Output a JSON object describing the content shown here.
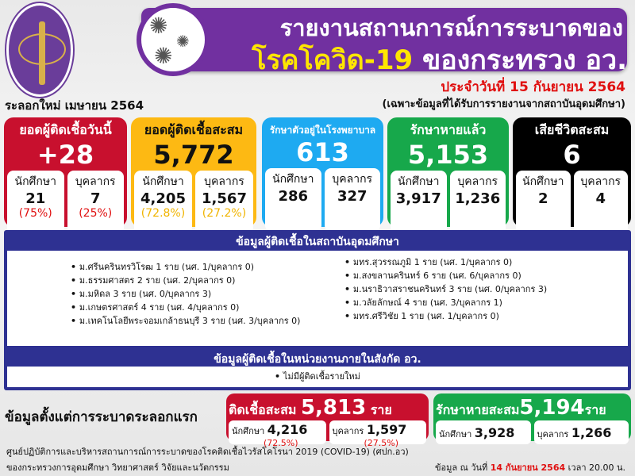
{
  "header": {
    "title_line1": "รายงานสถานการณ์การระบาดของ",
    "title_disease": "โรคโควิด-19",
    "title_ministry": "ของกระทรวง อว.",
    "date": "ประจำวันที่ 15 กันยายน 2564",
    "note": "(เฉพาะข้อมูลที่ได้รับการรายงานจากสถาบันอุดมศึกษา)",
    "wave": "ระลอกใหม่ เมษายน 2564"
  },
  "colors": {
    "red": "#c8102e",
    "yellow": "#fdb913",
    "blue": "#1eaaf1",
    "green": "#17a84b",
    "black": "#000000",
    "purple": "#7130a0",
    "navy": "#2e3192"
  },
  "cards": [
    {
      "title": "ยอดผู้ติดเชื้อวันนี้",
      "value": "+28",
      "student_label": "นักศึกษา",
      "student": "21",
      "student_pct": "(75%)",
      "staff_label": "บุคลากร",
      "staff": "7",
      "staff_pct": "(25%)"
    },
    {
      "title": "ยอดผู้ติดเชื้อสะสม",
      "value": "5,772",
      "student_label": "นักศึกษา",
      "student": "4,205",
      "student_pct": "(72.8%)",
      "staff_label": "บุคลากร",
      "staff": "1,567",
      "staff_pct": "(27.2%)"
    },
    {
      "title": "รักษาตัวอยู่ในโรงพยาบาล",
      "value": "613",
      "student_label": "นักศึกษา",
      "student": "286",
      "staff_label": "บุคลากร",
      "staff": "327"
    },
    {
      "title": "รักษาหายแล้ว",
      "value": "5,153",
      "student_label": "นักศึกษา",
      "student": "3,917",
      "staff_label": "บุคลากร",
      "staff": "1,236"
    },
    {
      "title": "เสียชีวิตสะสม",
      "value": "6",
      "student_label": "นักศึกษา",
      "student": "2",
      "staff_label": "บุคลากร",
      "staff": "4"
    }
  ],
  "institutions": {
    "heading": "ข้อมูลผู้ติดเชื้อในสถาบันอุดมศึกษา",
    "left": [
      "ม.ศรีนครินทรวิโรฒ 1 ราย (นศ. 1/บุคลากร 0)",
      "ม.ธรรมศาสตร 2 ราย (นศ. 2/บุคลากร 0)",
      "ม.มหิดล 3 ราย (นศ. 0/บุคลากร 3)",
      "ม.เกษตรศาสตร์ 4 ราย (นศ. 4/บุคลากร 0)",
      "ม.เทคโนโลยีพระจอมเกล้าธนบุรี 3 ราย (นศ. 3/บุคลากร 0)"
    ],
    "right": [
      "มทร.สุวรรณภูมิ 1 ราย (นศ. 1/บุคลากร 0)",
      "ม.สงขลานครินทร์ 6 ราย (นศ. 6/บุคลากร 0)",
      "ม.นราธิวาสราชนครินทร์ 3 ราย (นศ. 0/บุคลากร 3)",
      "ม.วลัยลักษณ์ 4 ราย (นศ. 3/บุคลากร 1)",
      "มทร.ศรีวิชัย 1 ราย (นศ. 1/บุคลากร 0)"
    ]
  },
  "agencies": {
    "heading": "ข้อมูลผู้ติดเชื้อในหน่วยงานภายในสังกัด อว.",
    "items": [
      "ไม่มีผู้ติดเชื้อรายใหม่"
    ]
  },
  "since_first": {
    "label": "ข้อมูลตั้งแต่การระบาดระลอกแรก",
    "infected": {
      "label": "ติดเชื้อสะสม",
      "value": "5,813",
      "unit": "ราย",
      "student_label": "นักศึกษา",
      "student": "4,216",
      "student_pct": "(72.5%)",
      "staff_label": "บุคลากร",
      "staff": "1,597",
      "staff_pct": "(27.5%)"
    },
    "recovered": {
      "label": "รักษาหายสะสม",
      "value": "5,194",
      "unit": "ราย",
      "student_label": "นักศึกษา",
      "student": "3,928",
      "staff_label": "บุคลากร",
      "staff": "1,266"
    }
  },
  "footer": {
    "line1": "ศูนย์ปฏิบัติการและบริหารสถานการณ์การระบาดของโรคติดเชื้อไวรัสโคโรนา 2019 (COVID-19) (ศปก.อว)",
    "line2": "ของกระทรวงการอุดมศึกษา วิทยาศาสตร์ วิจัยและนวัตกรรม",
    "asof_prefix": "ข้อมูล ณ วันที่",
    "asof_date": "14 กันยายน 2564",
    "asof_time": "เวลา 20.00 น."
  }
}
